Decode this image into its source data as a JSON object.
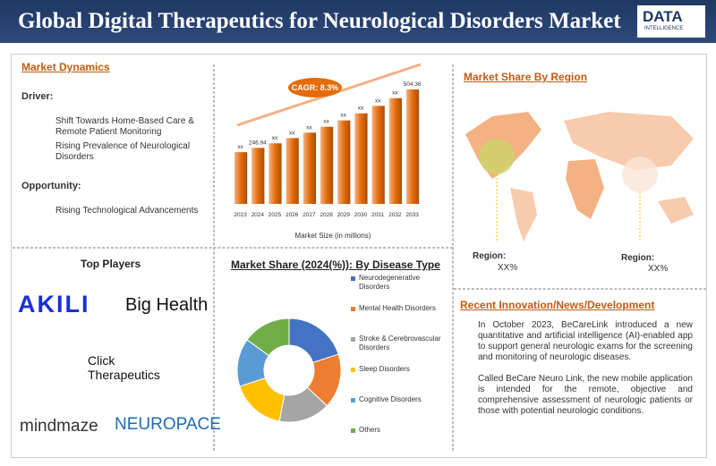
{
  "header": {
    "title": "Global Digital Therapeutics for Neurological Disorders Market",
    "logo": "DATA",
    "logo_sub": "INTELLIGENCE"
  },
  "market_dynamics": {
    "title": "Market Dynamics",
    "driver": "Driver:",
    "drivers": [
      "Shift Towards Home-Based Care & Remote Patient Monitoring",
      "Rising Prevalence of Neurological Disorders"
    ],
    "opportunity": "Opportunity:",
    "opportunities": [
      "Rising Technological Advancements"
    ]
  },
  "chart_data": [
    {
      "type": "bar",
      "categories": [
        "2023",
        "2024",
        "2025",
        "2026",
        "2027",
        "2028",
        "2029",
        "2030",
        "2031",
        "2032",
        "2033"
      ],
      "values": [
        228,
        246.94,
        267,
        290,
        314,
        340,
        368,
        399,
        432,
        466,
        504.36
      ],
      "value_labels": [
        "xx",
        "246.94",
        "xx",
        "xx",
        "xx",
        "xx",
        "xx",
        "xx",
        "xx",
        "xx",
        "504.36"
      ],
      "color": "#e46c0a",
      "xlabel": "Market Size (in millions)",
      "annotation": "CAGR: 8.3%"
    },
    {
      "type": "pie",
      "title": "Market Share (2024(%)): By Disease Type",
      "categories": [
        "Neurodegenerative Disorders",
        "Mental Health Disorders",
        "Stroke & Cerebrovascular Disorders",
        "Sleep Disorders",
        "Cognitive Disorders",
        "Others"
      ],
      "values": [
        20,
        17,
        16,
        17,
        15,
        15
      ],
      "colors": [
        "#4472c4",
        "#ed7d31",
        "#a5a5a5",
        "#ffc000",
        "#5b9bd5",
        "#70ad47"
      ]
    }
  ],
  "region": {
    "title": "Market Share By Region",
    "labels": [
      {
        "label": "Region:",
        "value": "XX%"
      },
      {
        "label": "Region:",
        "value": "XX%"
      }
    ]
  },
  "top_players": {
    "title": "Top Players",
    "players": [
      "AKILI",
      "Big Health",
      "Click Therapeutics",
      "mindmaze",
      "NEUROPACE"
    ]
  },
  "news": {
    "title": "Recent Innovation/News/Development",
    "items": [
      "In October 2023, BeCareLink introduced a new quantitative and artificial intelligence (AI)-enabled app to support general neurologic exams for the screening and monitoring of neurologic diseases.",
      "Called BeCare Neuro Link, the new mobile application is intended for the remote, objective and comprehensive assessment of neurologic patients or those with potential neurologic conditions."
    ]
  }
}
